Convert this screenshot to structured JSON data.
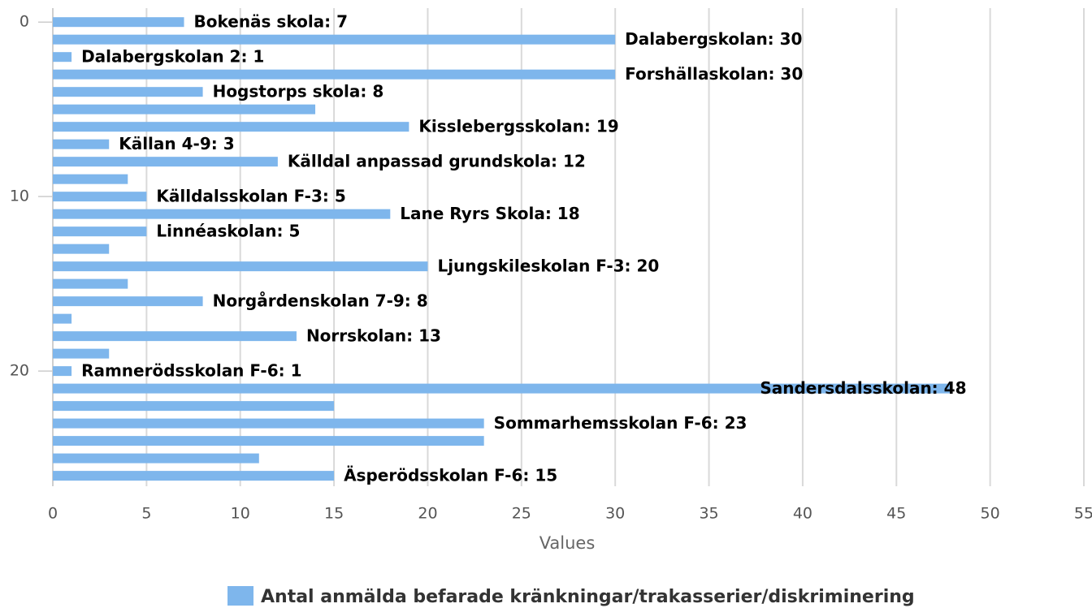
{
  "chart_data": {
    "type": "barh",
    "xlabel": "Values",
    "y": [
      0,
      1,
      2,
      3,
      4,
      5,
      6,
      7,
      8,
      9,
      10,
      11,
      12,
      13,
      14,
      15,
      16,
      17,
      18,
      19,
      20,
      21,
      22,
      23,
      24,
      25,
      26
    ],
    "series": [
      {
        "name": "Antal anmälda befarade kränkningar/trakasserier/diskriminering",
        "color": "#7eb6ec",
        "values": [
          7,
          30,
          1,
          30,
          8,
          14,
          19,
          3,
          12,
          4,
          5,
          18,
          5,
          3,
          20,
          4,
          8,
          1,
          13,
          3,
          1,
          48,
          15,
          23,
          23,
          11,
          15
        ],
        "value_labels": [
          "Bokenäs skola: 7",
          "Dalabergskolan: 30",
          "Dalabergskolan 2: 1",
          "Forshällaskolan: 30",
          "Hogstorps skola: 8",
          null,
          "Kisslebergsskolan: 19",
          "Källan 4-9: 3",
          "Källdal anpassad grundskola: 12",
          null,
          "Källdalsskolan F-3: 5",
          "Lane Ryrs Skola: 18",
          "Linnéaskolan: 5",
          null,
          "Ljungskileskolan F-3: 20",
          null,
          "Norgårdenskolan 7-9: 8",
          null,
          "Norrskolan: 13",
          null,
          "Ramnerödsskolan F-6: 1",
          "Sandersdalsskolan: 48",
          null,
          "Sommarhemsskolan F-6: 23",
          null,
          null,
          "Äsperödsskolan F-6: 15"
        ]
      }
    ],
    "xlim": [
      0,
      55
    ],
    "xticks": [
      0,
      5,
      10,
      15,
      20,
      25,
      30,
      35,
      40,
      45,
      50,
      55
    ],
    "ylim": [
      -0.8,
      26.6
    ],
    "yticks": [
      0,
      10,
      20
    ],
    "y_inverted": true,
    "grid": true,
    "legend": "bottom"
  }
}
